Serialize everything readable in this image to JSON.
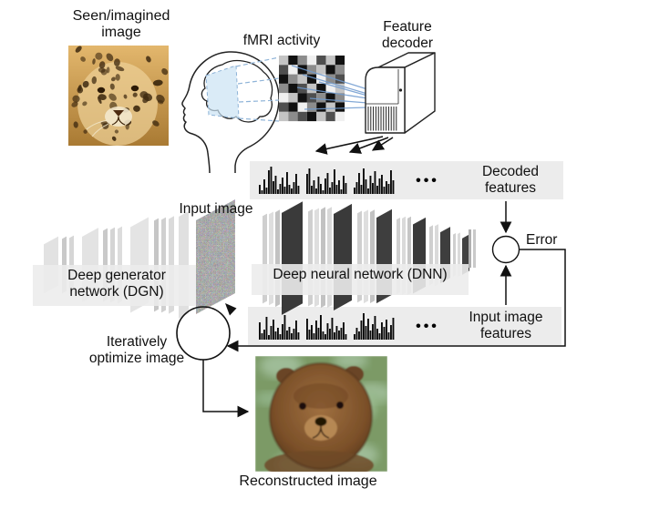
{
  "labels": {
    "seen_image": "Seen/imagined\nimage",
    "fmri": "fMRI activity",
    "feature_decoder": "Feature\ndecoder",
    "decoded_features": "Decoded\nfeatures",
    "input_image": "Input image",
    "dnn": "Deep neural network (DNN)",
    "dgn": "Deep generator\nnetwork (DGN)",
    "error": "Error",
    "input_image_features": "Input image\nfeatures",
    "iterative": "Iteratively\noptimize image",
    "reconstructed": "Reconstructed image"
  },
  "features": {
    "dots": "•••",
    "decoded": [
      [
        10,
        4,
        16,
        7,
        26,
        30,
        14,
        20,
        5,
        11,
        18,
        8,
        24,
        10,
        6,
        13,
        22,
        9
      ],
      [
        22,
        28,
        9,
        15,
        6,
        19,
        11,
        4,
        17,
        23,
        7,
        13,
        27,
        10,
        15,
        5,
        20,
        12
      ],
      [
        7,
        13,
        23,
        10,
        28,
        16,
        6,
        20,
        12,
        25,
        9,
        17,
        21,
        8,
        14,
        11,
        26,
        15
      ]
    ],
    "input": [
      [
        19,
        7,
        11,
        25,
        5,
        15,
        22,
        9,
        13,
        6,
        17,
        27,
        10,
        14,
        7,
        12,
        21,
        8
      ],
      [
        23,
        11,
        16,
        7,
        21,
        13,
        27,
        9,
        6,
        18,
        12,
        24,
        8,
        15,
        10,
        13,
        19,
        6
      ],
      [
        6,
        13,
        9,
        21,
        29,
        15,
        23,
        10,
        17,
        26,
        12,
        7,
        19,
        14,
        22,
        8,
        16,
        24
      ]
    ]
  },
  "fmri_grid": {
    "palette": [
      "#111111",
      "#4f4f4f",
      "#8c8c8c",
      "#c4c4c4",
      "#f0f0f0"
    ],
    "shades": [
      [
        3,
        0,
        2,
        4,
        1,
        3,
        0
      ],
      [
        1,
        4,
        0,
        2,
        3,
        0,
        2
      ],
      [
        0,
        2,
        3,
        0,
        4,
        2,
        1
      ],
      [
        2,
        0,
        1,
        3,
        0,
        4,
        3
      ],
      [
        4,
        3,
        0,
        1,
        2,
        0,
        2
      ],
      [
        1,
        0,
        4,
        2,
        0,
        3,
        0
      ],
      [
        3,
        2,
        1,
        0,
        3,
        1,
        4
      ]
    ]
  },
  "media": {
    "seen_image": "leopard-photo",
    "input_image": "rgb-noise-image",
    "reconstructed_image": "reconstructed-animal-photo",
    "fmri": "voxel-activity-grid",
    "decoder": "computer-tower-icon",
    "brain": "head-profile-with-brain-icon"
  },
  "colors": {
    "band": "#ececec",
    "connection_blue": "#6f9bd0",
    "projection_blue": "#8fb4d8",
    "bar": "#0a0a0a",
    "outline": "#1a1a1a"
  }
}
